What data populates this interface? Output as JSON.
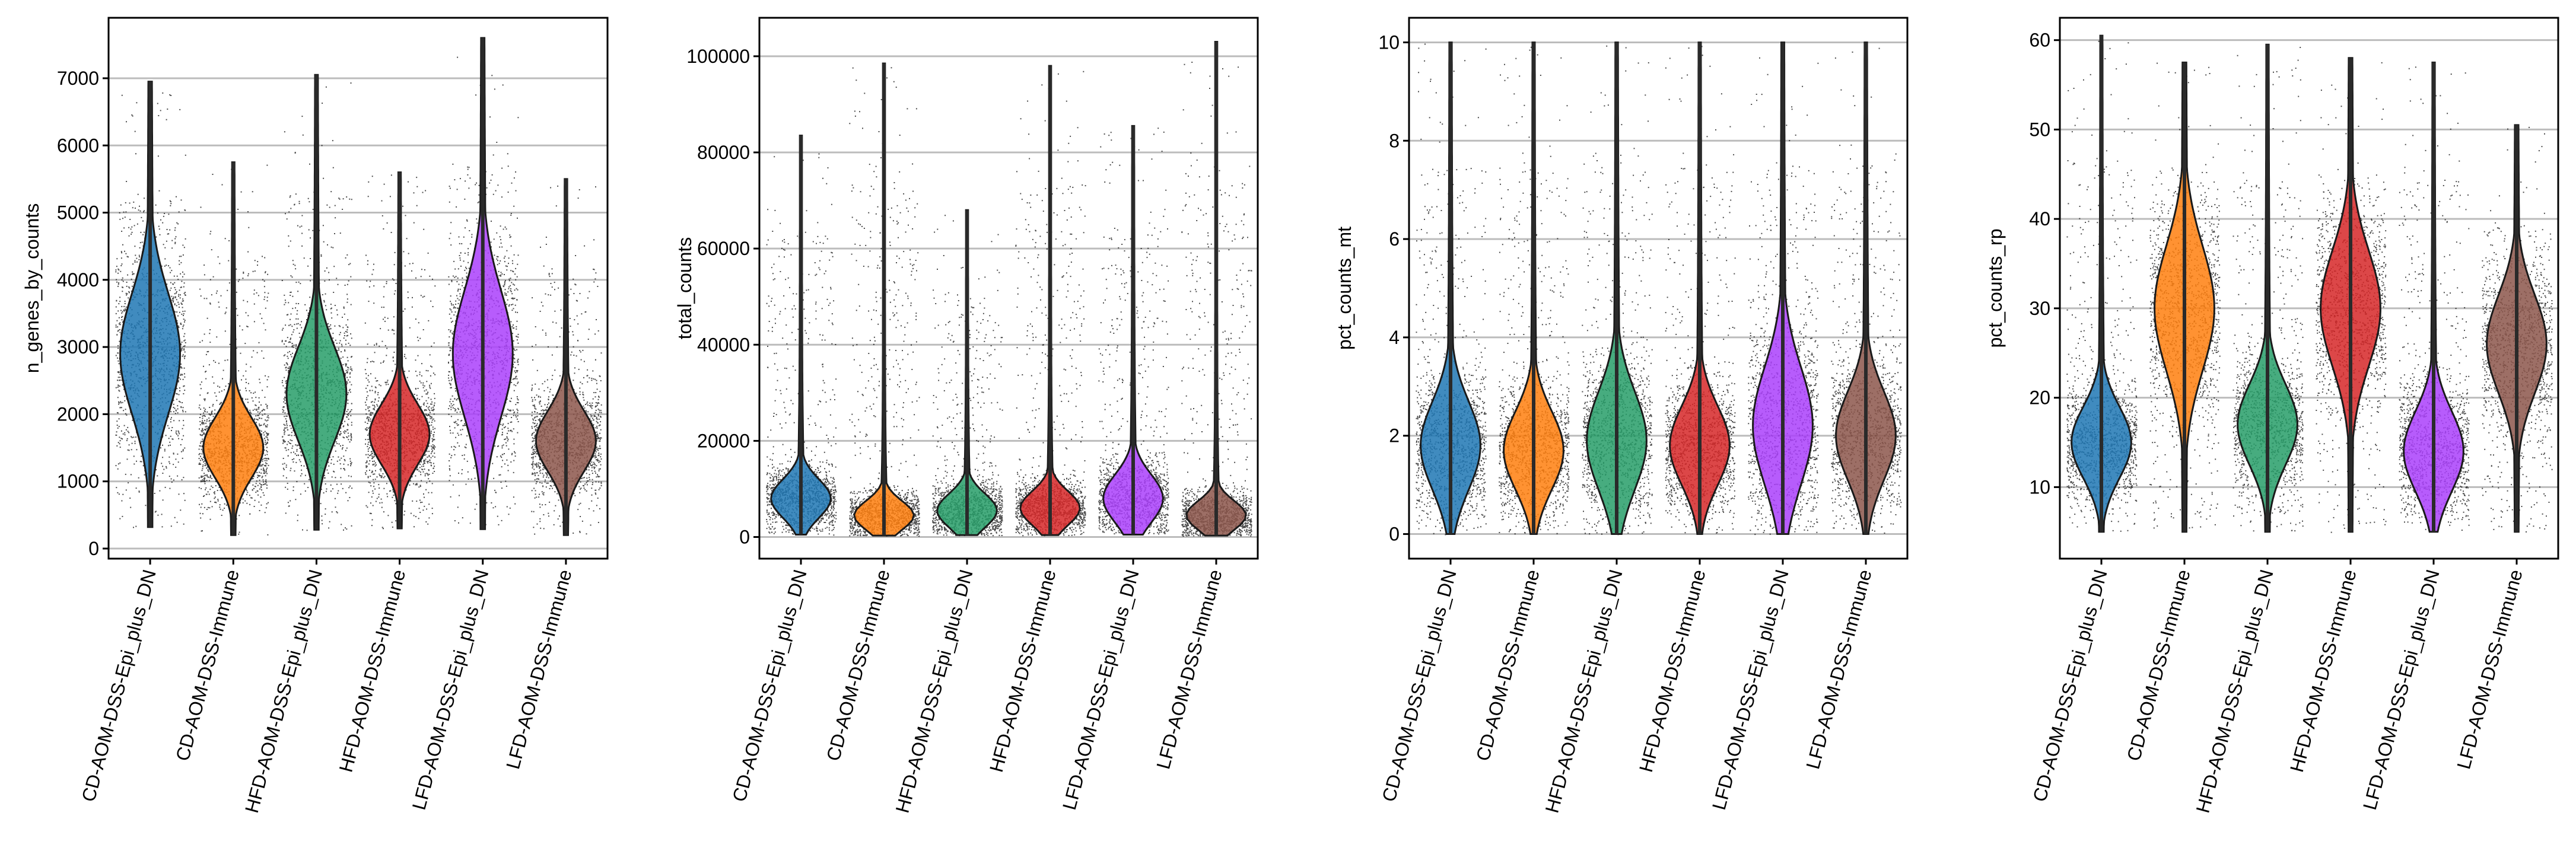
{
  "chart_data": [
    {
      "type": "violin",
      "ylabel": "n_genes_by_counts",
      "ylim": [
        -150,
        7900
      ],
      "yticks": [
        0,
        1000,
        2000,
        3000,
        4000,
        5000,
        6000,
        7000
      ],
      "grid": true,
      "categories": [
        "CD-AOM-DSS-Epi_plus_DN",
        "CD-AOM-DSS-Immune",
        "HFD-AOM-DSS-Epi_plus_DN",
        "HFD-AOM-DSS-Immune",
        "LFD-AOM-DSS-Epi_plus_DN",
        "LFD-AOM-DSS-Immune"
      ],
      "colors": [
        "#1f77b4",
        "#ff7f0e",
        "#279e68",
        "#d62728",
        "#aa40fc",
        "#8c564b"
      ],
      "distributions": [
        {
          "min": 320,
          "max": 6950,
          "peak": 2900,
          "median": 2850,
          "spread": 900
        },
        {
          "min": 200,
          "max": 5750,
          "peak": 1500,
          "median": 1600,
          "spread": 450
        },
        {
          "min": 280,
          "max": 7050,
          "peak": 2300,
          "median": 2400,
          "spread": 700
        },
        {
          "min": 300,
          "max": 5600,
          "peak": 1700,
          "median": 1750,
          "spread": 450
        },
        {
          "min": 290,
          "max": 7600,
          "peak": 2900,
          "median": 2950,
          "spread": 950
        },
        {
          "min": 200,
          "max": 5500,
          "peak": 1600,
          "median": 1650,
          "spread": 450
        }
      ]
    },
    {
      "type": "violin",
      "ylabel": "total_counts",
      "ylim": [
        -4500,
        108000
      ],
      "yticks": [
        0,
        20000,
        40000,
        60000,
        80000,
        100000
      ],
      "grid": true,
      "categories": [
        "CD-AOM-DSS-Epi_plus_DN",
        "CD-AOM-DSS-Immune",
        "HFD-AOM-DSS-Epi_plus_DN",
        "HFD-AOM-DSS-Immune",
        "LFD-AOM-DSS-Epi_plus_DN",
        "LFD-AOM-DSS-Immune"
      ],
      "colors": [
        "#1f77b4",
        "#ff7f0e",
        "#279e68",
        "#d62728",
        "#aa40fc",
        "#8c564b"
      ],
      "distributions": [
        {
          "min": 500,
          "max": 83500,
          "peak": 8000,
          "median": 8000,
          "spread": 4000
        },
        {
          "min": 300,
          "max": 98500,
          "peak": 4500,
          "median": 4500,
          "spread": 3000
        },
        {
          "min": 400,
          "max": 68000,
          "peak": 5500,
          "median": 5500,
          "spread": 3500
        },
        {
          "min": 400,
          "max": 98000,
          "peak": 6000,
          "median": 6000,
          "spread": 3500
        },
        {
          "min": 500,
          "max": 85500,
          "peak": 8000,
          "median": 8000,
          "spread": 5000
        },
        {
          "min": 300,
          "max": 103000,
          "peak": 4500,
          "median": 4500,
          "spread": 3000
        }
      ]
    },
    {
      "type": "violin",
      "ylabel": "pct_counts_mt",
      "ylim": [
        -0.5,
        10.5
      ],
      "yticks": [
        0,
        2,
        4,
        6,
        8,
        10
      ],
      "grid": true,
      "categories": [
        "CD-AOM-DSS-Epi_plus_DN",
        "CD-AOM-DSS-Immune",
        "HFD-AOM-DSS-Epi_plus_DN",
        "HFD-AOM-DSS-Immune",
        "LFD-AOM-DSS-Epi_plus_DN",
        "LFD-AOM-DSS-Immune"
      ],
      "colors": [
        "#1f77b4",
        "#ff7f0e",
        "#279e68",
        "#d62728",
        "#aa40fc",
        "#8c564b"
      ],
      "distributions": [
        {
          "min": 0.0,
          "max": 10.0,
          "peak": 1.8,
          "median": 2.0,
          "spread": 0.9
        },
        {
          "min": 0.0,
          "max": 10.0,
          "peak": 1.7,
          "median": 1.8,
          "spread": 0.8
        },
        {
          "min": 0.0,
          "max": 10.0,
          "peak": 1.9,
          "median": 2.1,
          "spread": 1.0
        },
        {
          "min": 0.0,
          "max": 10.0,
          "peak": 1.8,
          "median": 1.9,
          "spread": 0.8
        },
        {
          "min": 0.0,
          "max": 10.0,
          "peak": 2.2,
          "median": 2.4,
          "spread": 1.2
        },
        {
          "min": 0.0,
          "max": 10.0,
          "peak": 2.0,
          "median": 2.2,
          "spread": 0.9
        }
      ]
    },
    {
      "type": "violin",
      "ylabel": "pct_counts_rp",
      "ylim": [
        2.0,
        62.5
      ],
      "yticks": [
        10,
        20,
        30,
        40,
        50,
        60
      ],
      "grid": true,
      "categories": [
        "CD-AOM-DSS-Epi_plus_DN",
        "CD-AOM-DSS-Immune",
        "HFD-AOM-DSS-Epi_plus_DN",
        "HFD-AOM-DSS-Immune",
        "LFD-AOM-DSS-Epi_plus_DN",
        "LFD-AOM-DSS-Immune"
      ],
      "colors": [
        "#1f77b4",
        "#ff7f0e",
        "#279e68",
        "#d62728",
        "#aa40fc",
        "#8c564b"
      ],
      "distributions": [
        {
          "min": 5.0,
          "max": 60.5,
          "peak": 15,
          "median": 15,
          "spread": 4.0
        },
        {
          "min": 5.0,
          "max": 57.5,
          "peak": 30,
          "median": 28,
          "spread": 7.0
        },
        {
          "min": 5.0,
          "max": 59.5,
          "peak": 17,
          "median": 17,
          "spread": 4.5
        },
        {
          "min": 5.0,
          "max": 58.0,
          "peak": 30,
          "median": 29,
          "spread": 6.5
        },
        {
          "min": 5.0,
          "max": 57.5,
          "peak": 14,
          "median": 15,
          "spread": 4.5
        },
        {
          "min": 5.0,
          "max": 50.5,
          "peak": 26,
          "median": 26,
          "spread": 5.5
        }
      ]
    }
  ]
}
